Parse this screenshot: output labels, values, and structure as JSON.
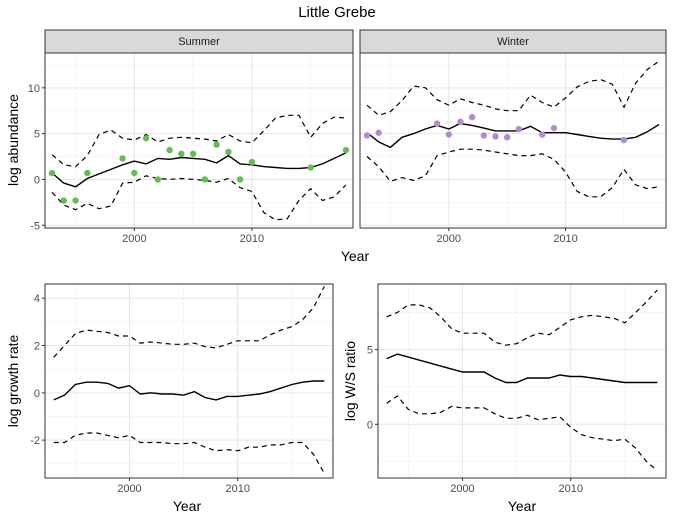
{
  "title": "Little Grebe",
  "colors": {
    "summer_points": "#66bb55",
    "winter_points": "#b48acd",
    "line": "#000000",
    "strip_fill": "#d9d9d9"
  },
  "chart_data": [
    {
      "type": "line",
      "panel": "top",
      "ylabel": "log abundance",
      "xlabel": "Year",
      "xlim": [
        1992.4,
        2018.6
      ],
      "ylim": [
        -5.3,
        13.8
      ],
      "xticks": [
        2000,
        2010
      ],
      "yticks": [
        -5,
        0,
        5,
        10
      ],
      "grid": true,
      "facets": [
        {
          "label": "Summer",
          "x": [
            1993,
            1994,
            1995,
            1996,
            1997,
            1998,
            1999,
            2000,
            2001,
            2002,
            2003,
            2004,
            2005,
            2006,
            2007,
            2008,
            2009,
            2010,
            2011,
            2012,
            2013,
            2014,
            2015,
            2016,
            2017,
            2018
          ],
          "mean": [
            0.7,
            -0.4,
            -0.8,
            0.1,
            0.6,
            1.1,
            1.6,
            2.0,
            1.7,
            2.3,
            2.2,
            2.4,
            2.3,
            2.2,
            1.8,
            2.6,
            1.7,
            1.6,
            1.4,
            1.3,
            1.2,
            1.2,
            1.3,
            1.7,
            2.3,
            2.9
          ],
          "upper": [
            2.7,
            1.6,
            1.4,
            2.6,
            4.9,
            5.4,
            4.5,
            4.3,
            4.9,
            4.1,
            4.5,
            4.6,
            4.5,
            4.4,
            4.2,
            4.9,
            4.2,
            4.0,
            5.3,
            6.7,
            7.0,
            7.0,
            4.6,
            6.1,
            6.8,
            6.7
          ],
          "lower": [
            -1.4,
            -2.8,
            -3.3,
            -2.6,
            -3.2,
            -2.9,
            -0.4,
            -0.3,
            0.4,
            0.1,
            0.0,
            0.1,
            0.0,
            -0.1,
            -0.3,
            0.1,
            -0.9,
            -1.3,
            -3.6,
            -4.4,
            -4.3,
            -2.3,
            -1.0,
            -2.3,
            -1.9,
            -0.6
          ],
          "points": {
            "x": [
              1993,
              1994,
              1995,
              1996,
              1999,
              2000,
              2001,
              2002,
              2003,
              2004,
              2005,
              2006,
              2007,
              2008,
              2009,
              2010,
              2015,
              2018
            ],
            "y": [
              0.7,
              -2.3,
              -2.3,
              0.7,
              2.3,
              0.7,
              4.5,
              0.0,
              3.2,
              2.8,
              2.8,
              0.0,
              3.8,
              3.0,
              0.0,
              1.9,
              1.3,
              3.2
            ]
          }
        },
        {
          "label": "Winter",
          "x": [
            1993,
            1994,
            1995,
            1996,
            1997,
            1998,
            1999,
            2000,
            2001,
            2002,
            2003,
            2004,
            2005,
            2006,
            2007,
            2008,
            2009,
            2010,
            2011,
            2012,
            2013,
            2014,
            2015,
            2016,
            2017,
            2018
          ],
          "mean": [
            5.1,
            4.1,
            3.5,
            4.6,
            5.0,
            5.5,
            5.9,
            5.5,
            6.1,
            5.9,
            5.6,
            5.3,
            5.3,
            5.3,
            5.8,
            5.1,
            5.1,
            5.1,
            4.9,
            4.7,
            4.5,
            4.4,
            4.4,
            4.6,
            5.2,
            6.0
          ],
          "upper": [
            8.1,
            7.0,
            7.4,
            8.6,
            10.2,
            10.0,
            8.7,
            8.1,
            8.8,
            8.4,
            8.1,
            7.7,
            7.5,
            7.5,
            9.2,
            8.4,
            7.9,
            8.9,
            10.1,
            10.7,
            10.9,
            10.4,
            7.9,
            10.5,
            12.0,
            12.9
          ],
          "lower": [
            2.5,
            1.4,
            -0.2,
            0.2,
            -0.1,
            0.4,
            2.6,
            3.0,
            3.3,
            3.3,
            3.2,
            3.0,
            2.8,
            2.6,
            2.6,
            2.8,
            2.2,
            0.8,
            -1.3,
            -1.9,
            -1.9,
            -0.9,
            1.1,
            -0.6,
            -1.0,
            -0.8
          ],
          "points": {
            "x": [
              1993,
              1994,
              1999,
              2000,
              2001,
              2002,
              2003,
              2004,
              2005,
              2006,
              2008,
              2009,
              2015
            ],
            "y": [
              4.8,
              5.1,
              6.1,
              4.9,
              6.3,
              6.8,
              4.8,
              4.7,
              4.6,
              5.5,
              4.9,
              5.6,
              4.3
            ]
          }
        }
      ]
    },
    {
      "type": "line",
      "panel": "bottom-left",
      "ylabel": "log growth rate",
      "xlabel": "Year",
      "xlim": [
        1992.2,
        2018.8
      ],
      "ylim": [
        -3.6,
        4.6
      ],
      "xticks": [
        2000,
        2010
      ],
      "yticks": [
        -2,
        0,
        2,
        4
      ],
      "grid": true,
      "x": [
        1993,
        1994,
        1995,
        1996,
        1997,
        1998,
        1999,
        2000,
        2001,
        2002,
        2003,
        2004,
        2005,
        2006,
        2007,
        2008,
        2009,
        2010,
        2011,
        2012,
        2013,
        2014,
        2015,
        2016,
        2017,
        2018
      ],
      "mean": [
        -0.3,
        -0.1,
        0.35,
        0.45,
        0.45,
        0.4,
        0.2,
        0.3,
        -0.05,
        0.0,
        -0.05,
        -0.05,
        -0.1,
        0.05,
        -0.2,
        -0.3,
        -0.15,
        -0.15,
        -0.1,
        -0.05,
        0.05,
        0.2,
        0.35,
        0.45,
        0.5,
        0.5
      ],
      "upper": [
        1.5,
        2.0,
        2.5,
        2.65,
        2.6,
        2.55,
        2.4,
        2.4,
        2.1,
        2.15,
        2.1,
        2.05,
        2.05,
        2.1,
        1.95,
        1.9,
        2.05,
        2.2,
        2.2,
        2.2,
        2.45,
        2.65,
        2.8,
        3.1,
        3.6,
        4.5
      ],
      "lower": [
        -2.1,
        -2.1,
        -1.8,
        -1.7,
        -1.7,
        -1.8,
        -1.9,
        -1.8,
        -2.1,
        -2.1,
        -2.1,
        -2.15,
        -2.15,
        -2.1,
        -2.3,
        -2.45,
        -2.4,
        -2.45,
        -2.3,
        -2.3,
        -2.2,
        -2.2,
        -2.1,
        -2.1,
        -2.6,
        -3.4
      ]
    },
    {
      "type": "line",
      "panel": "bottom-right",
      "ylabel": "log W/S ratio",
      "xlabel": "Year",
      "xlim": [
        1992.2,
        2018.8
      ],
      "ylim": [
        -3.6,
        9.4
      ],
      "xticks": [
        2000,
        2010
      ],
      "yticks": [
        0,
        5
      ],
      "grid": true,
      "x": [
        1993,
        1994,
        1995,
        1996,
        1997,
        1998,
        1999,
        2000,
        2001,
        2002,
        2003,
        2004,
        2005,
        2006,
        2007,
        2008,
        2009,
        2010,
        2011,
        2012,
        2013,
        2014,
        2015,
        2016,
        2017,
        2018
      ],
      "mean": [
        4.4,
        4.7,
        4.5,
        4.3,
        4.1,
        3.9,
        3.7,
        3.5,
        3.5,
        3.5,
        3.1,
        2.8,
        2.8,
        3.1,
        3.1,
        3.1,
        3.3,
        3.2,
        3.2,
        3.1,
        3.0,
        2.9,
        2.8,
        2.8,
        2.8,
        2.8
      ],
      "upper": [
        7.2,
        7.5,
        8.0,
        8.0,
        7.8,
        7.2,
        6.4,
        6.1,
        6.1,
        6.1,
        5.5,
        5.3,
        5.4,
        5.8,
        6.1,
        6.0,
        6.5,
        7.0,
        7.2,
        7.3,
        7.2,
        7.1,
        6.8,
        7.5,
        8.2,
        9.0
      ],
      "lower": [
        1.4,
        1.9,
        1.0,
        0.7,
        0.7,
        0.8,
        1.2,
        1.1,
        1.1,
        1.1,
        0.7,
        0.4,
        0.4,
        0.6,
        0.3,
        0.4,
        0.5,
        -0.2,
        -0.7,
        -0.9,
        -1.0,
        -1.1,
        -1.0,
        -1.6,
        -2.5,
        -3.1
      ]
    }
  ]
}
